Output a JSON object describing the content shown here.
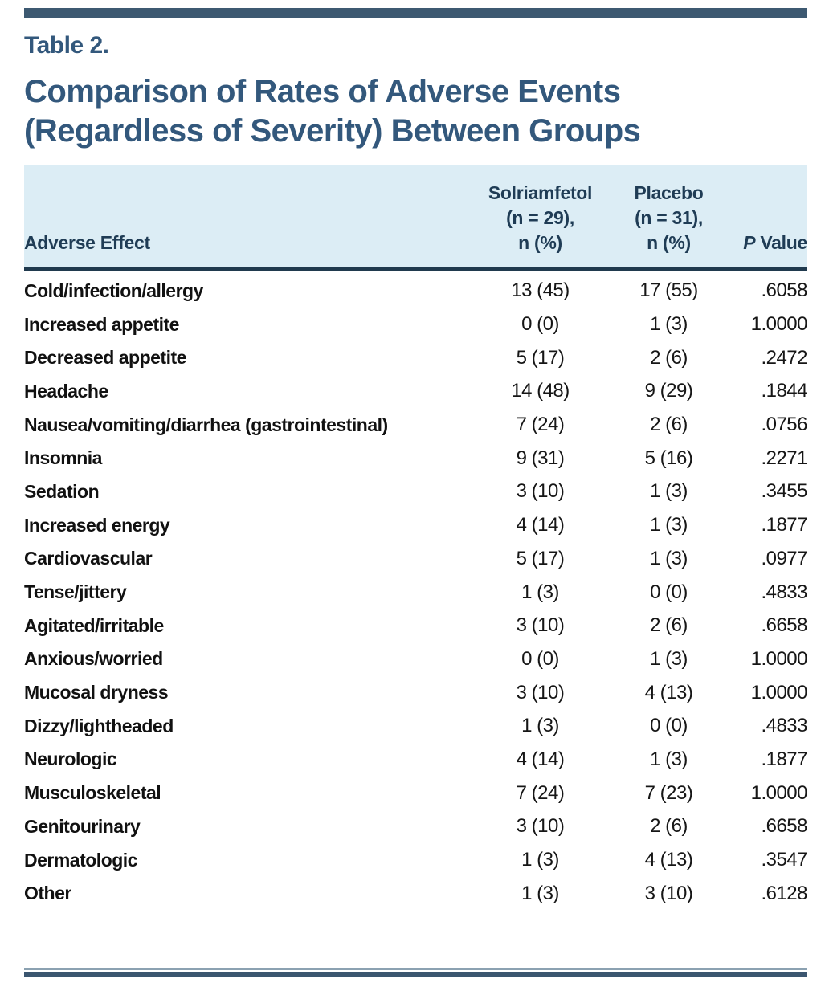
{
  "page": {
    "kicker": "Table 2.",
    "title_line1": "Comparison of Rates of Adverse Events",
    "title_line2": "(Regardless of Severity) Between Groups"
  },
  "colors": {
    "title_blue": "#33587c",
    "header_background": "#dcedf5",
    "header_text": "#1f3c55",
    "heavy_rule": "#203a4e",
    "accent_bar": "#3d5971",
    "thin_rule": "#8ba1b1",
    "body_text": "#161616"
  },
  "table": {
    "header": {
      "adverse_effect": "Adverse Effect",
      "solriamfetol": {
        "line1": "Solriamfetol",
        "line2": "(n = 29),",
        "line3": "n (%)"
      },
      "placebo": {
        "line1": "Placebo",
        "line2": "(n = 31),",
        "line3": "n (%)"
      },
      "p_value": {
        "p": "P",
        "rest": " Value"
      }
    },
    "rows": [
      {
        "effect": "Cold/infection/allergy",
        "solriamfetol": "13 (45)",
        "placebo": "17 (55)",
        "p_value": ".6058"
      },
      {
        "effect": "Increased appetite",
        "solriamfetol": "0 (0)",
        "placebo": "1 (3)",
        "p_value": "1.0000"
      },
      {
        "effect": "Decreased appetite",
        "solriamfetol": "5 (17)",
        "placebo": "2 (6)",
        "p_value": ".2472"
      },
      {
        "effect": "Headache",
        "solriamfetol": "14 (48)",
        "placebo": "9 (29)",
        "p_value": ".1844"
      },
      {
        "effect": "Nausea/vomiting/diarrhea (gastrointestinal)",
        "solriamfetol": "7 (24)",
        "placebo": "2 (6)",
        "p_value": ".0756"
      },
      {
        "effect": "Insomnia",
        "solriamfetol": "9 (31)",
        "placebo": "5 (16)",
        "p_value": ".2271"
      },
      {
        "effect": "Sedation",
        "solriamfetol": "3 (10)",
        "placebo": "1 (3)",
        "p_value": ".3455"
      },
      {
        "effect": "Increased energy",
        "solriamfetol": "4 (14)",
        "placebo": "1 (3)",
        "p_value": ".1877"
      },
      {
        "effect": "Cardiovascular",
        "solriamfetol": "5 (17)",
        "placebo": "1 (3)",
        "p_value": ".0977"
      },
      {
        "effect": "Tense/jittery",
        "solriamfetol": "1 (3)",
        "placebo": "0 (0)",
        "p_value": ".4833"
      },
      {
        "effect": "Agitated/irritable",
        "solriamfetol": "3 (10)",
        "placebo": "2 (6)",
        "p_value": ".6658"
      },
      {
        "effect": "Anxious/worried",
        "solriamfetol": "0 (0)",
        "placebo": "1 (3)",
        "p_value": "1.0000"
      },
      {
        "effect": "Mucosal dryness",
        "solriamfetol": "3 (10)",
        "placebo": "4 (13)",
        "p_value": "1.0000"
      },
      {
        "effect": "Dizzy/lightheaded",
        "solriamfetol": "1 (3)",
        "placebo": "0 (0)",
        "p_value": ".4833"
      },
      {
        "effect": "Neurologic",
        "solriamfetol": "4 (14)",
        "placebo": "1 (3)",
        "p_value": ".1877"
      },
      {
        "effect": "Musculoskeletal",
        "solriamfetol": "7 (24)",
        "placebo": "7 (23)",
        "p_value": "1.0000"
      },
      {
        "effect": "Genitourinary",
        "solriamfetol": "3 (10)",
        "placebo": "2 (6)",
        "p_value": ".6658"
      },
      {
        "effect": "Dermatologic",
        "solriamfetol": "1 (3)",
        "placebo": "4 (13)",
        "p_value": ".3547"
      },
      {
        "effect": "Other",
        "solriamfetol": "1 (3)",
        "placebo": "3 (10)",
        "p_value": ".6128"
      }
    ]
  }
}
